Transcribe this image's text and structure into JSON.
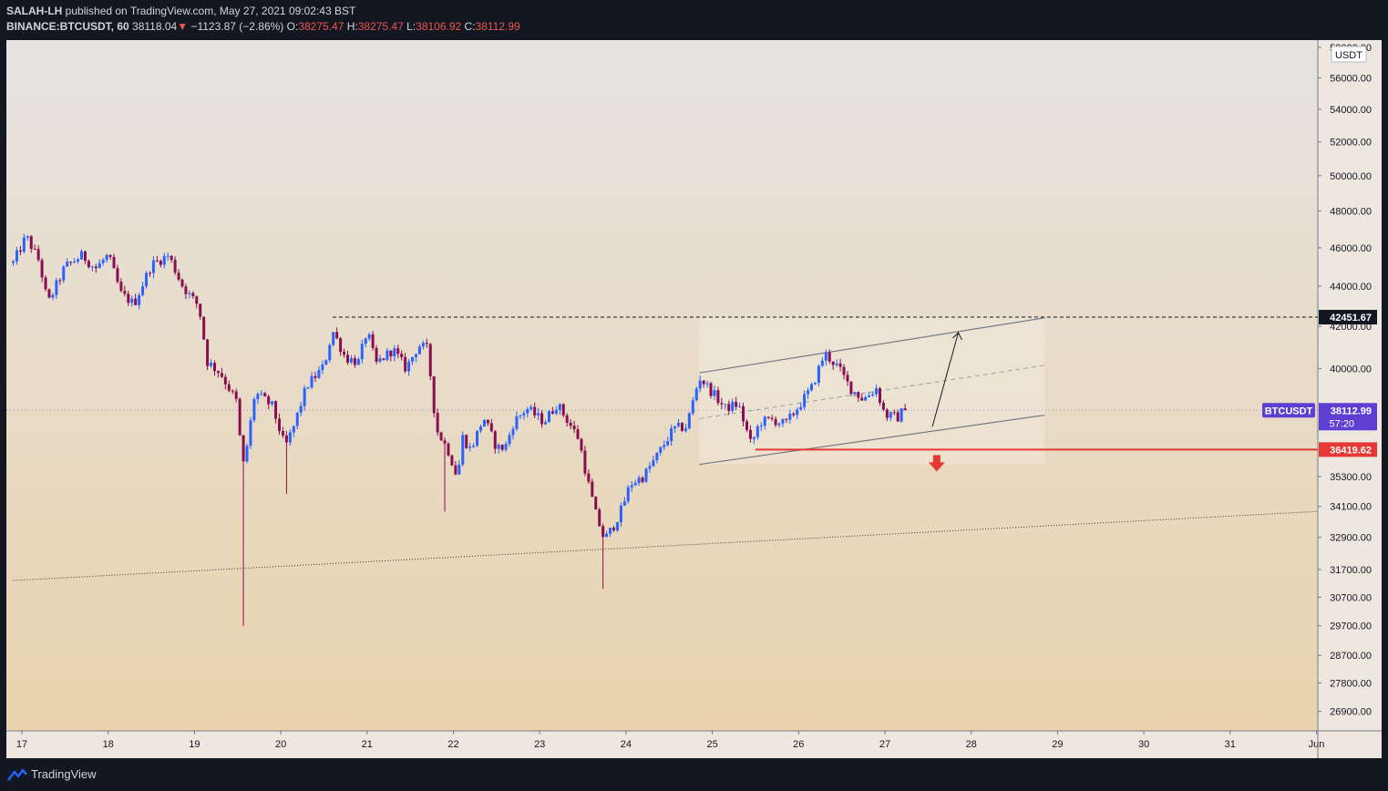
{
  "header": {
    "author": "SALAH-LH",
    "published_text": "published on TradingView.com, May 27, 2021 09:02:43 BST",
    "symbol": "BINANCE:BTCUSDT, 60",
    "last": "38118.04",
    "arrow": "▼",
    "change": "−1123.87 (−2.86%)",
    "o_label": "O:",
    "o_val": "38275.47",
    "h_label": "H:",
    "h_val": "38275.47",
    "l_label": "L:",
    "l_val": "38106.92",
    "c_label": "C:",
    "c_val": "38112.99"
  },
  "footer": {
    "brand": "TradingView"
  },
  "colors": {
    "up": "#2962ff",
    "down": "#880e4f",
    "support": "#e53935",
    "bg_top": "#e6e3e0",
    "bg_bottom": "#ead3ad",
    "symbol_badge": "#5d3fd3"
  },
  "chart_data": {
    "type": "candlestick",
    "symbol": "BTCUSDT",
    "interval": "60",
    "currency_label": "USDT",
    "x_tick_labels": [
      "17",
      "18",
      "19",
      "20",
      "21",
      "22",
      "23",
      "24",
      "25",
      "26",
      "27",
      "28",
      "29",
      "30",
      "31",
      "Jun"
    ],
    "y_tick_labels": [
      "58000.00",
      "56000.00",
      "54000.00",
      "52000.00",
      "50000.00",
      "48000.00",
      "46000.00",
      "44000.00",
      "42000.00",
      "40000.00",
      "35300.00",
      "34100.00",
      "32900.00",
      "31700.00",
      "30700.00",
      "29700.00",
      "28700.00",
      "27800.00",
      "26900.00"
    ],
    "y_ticks": [
      58000,
      56000,
      54000,
      52000,
      50000,
      48000,
      46000,
      44000,
      42000,
      40000,
      35300,
      34100,
      32900,
      31700,
      30700,
      29700,
      28700,
      27800,
      26900
    ],
    "y_scale": "log",
    "ylim": [
      26300,
      58500
    ],
    "xlim": [
      16.9,
      32.0
    ],
    "price_line": {
      "label": "BTCUSDT",
      "value": 38112.99,
      "text": "38112.99",
      "countdown": "57:20"
    },
    "resistance": {
      "value": 42451.67,
      "text": "42451.67",
      "from_x": 20.6
    },
    "support": {
      "value": 36419.62,
      "text": "36419.62",
      "from_x": 25.5
    },
    "trendline": {
      "x1": 16.9,
      "y1": 31300,
      "x2": 32.0,
      "y2": 33900
    },
    "channel": {
      "lower": {
        "x1": 24.85,
        "y1": 35800,
        "x2": 28.85,
        "y2": 37900
      },
      "upper": {
        "x1": 24.85,
        "y1": 39800,
        "x2": 28.85,
        "y2": 42420
      },
      "mid": {
        "x1": 24.85,
        "y1": 37750,
        "x2": 28.85,
        "y2": 40150
      }
    },
    "projection": {
      "x1": 27.55,
      "y1": 37400,
      "x2": 27.85,
      "y2": 41700
    },
    "down_arrow_x": 27.6,
    "path": [
      [
        16.9,
        45200
      ],
      [
        17.05,
        46600
      ],
      [
        17.2,
        45300
      ],
      [
        17.3,
        43100
      ],
      [
        17.5,
        45000
      ],
      [
        17.7,
        45600
      ],
      [
        17.85,
        44900
      ],
      [
        18.0,
        45600
      ],
      [
        18.15,
        43600
      ],
      [
        18.3,
        43100
      ],
      [
        18.5,
        45100
      ],
      [
        18.7,
        45600
      ],
      [
        18.85,
        44100
      ],
      [
        18.95,
        43500
      ],
      [
        19.05,
        43000
      ],
      [
        19.15,
        40300
      ],
      [
        19.3,
        39800
      ],
      [
        19.5,
        38400
      ],
      [
        19.55,
        35500
      ],
      [
        19.62,
        36800
      ],
      [
        19.7,
        38900
      ],
      [
        19.9,
        38300
      ],
      [
        20.05,
        36500
      ],
      [
        20.15,
        37400
      ],
      [
        20.3,
        39200
      ],
      [
        20.5,
        40100
      ],
      [
        20.6,
        41800
      ],
      [
        20.75,
        40500
      ],
      [
        20.9,
        40300
      ],
      [
        21.0,
        41800
      ],
      [
        21.1,
        40200
      ],
      [
        21.3,
        40900
      ],
      [
        21.45,
        40000
      ],
      [
        21.6,
        41100
      ],
      [
        21.7,
        40900
      ],
      [
        21.8,
        37300
      ],
      [
        21.95,
        36300
      ],
      [
        22.05,
        35200
      ],
      [
        22.1,
        37000
      ],
      [
        22.2,
        36400
      ],
      [
        22.35,
        37800
      ],
      [
        22.5,
        36500
      ],
      [
        22.6,
        36500
      ],
      [
        22.7,
        37600
      ],
      [
        22.85,
        38200
      ],
      [
        23.05,
        37600
      ],
      [
        23.2,
        38400
      ],
      [
        23.35,
        37500
      ],
      [
        23.45,
        36900
      ],
      [
        23.55,
        35200
      ],
      [
        23.65,
        33800
      ],
      [
        23.75,
        32800
      ],
      [
        23.85,
        33300
      ],
      [
        23.95,
        34000
      ],
      [
        24.05,
        35000
      ],
      [
        24.2,
        35300
      ],
      [
        24.35,
        36100
      ],
      [
        24.55,
        37300
      ],
      [
        24.7,
        37400
      ],
      [
        24.85,
        39600
      ],
      [
        25.0,
        38900
      ],
      [
        25.15,
        38200
      ],
      [
        25.3,
        38400
      ],
      [
        25.45,
        36600
      ],
      [
        25.55,
        37600
      ],
      [
        25.7,
        37700
      ],
      [
        25.85,
        37500
      ],
      [
        26.0,
        38300
      ],
      [
        26.15,
        39100
      ],
      [
        26.3,
        40700
      ],
      [
        26.45,
        40100
      ],
      [
        26.6,
        39100
      ],
      [
        26.75,
        38600
      ],
      [
        26.9,
        39100
      ],
      [
        27.0,
        37900
      ],
      [
        27.15,
        37800
      ],
      [
        27.25,
        38300
      ]
    ]
  }
}
